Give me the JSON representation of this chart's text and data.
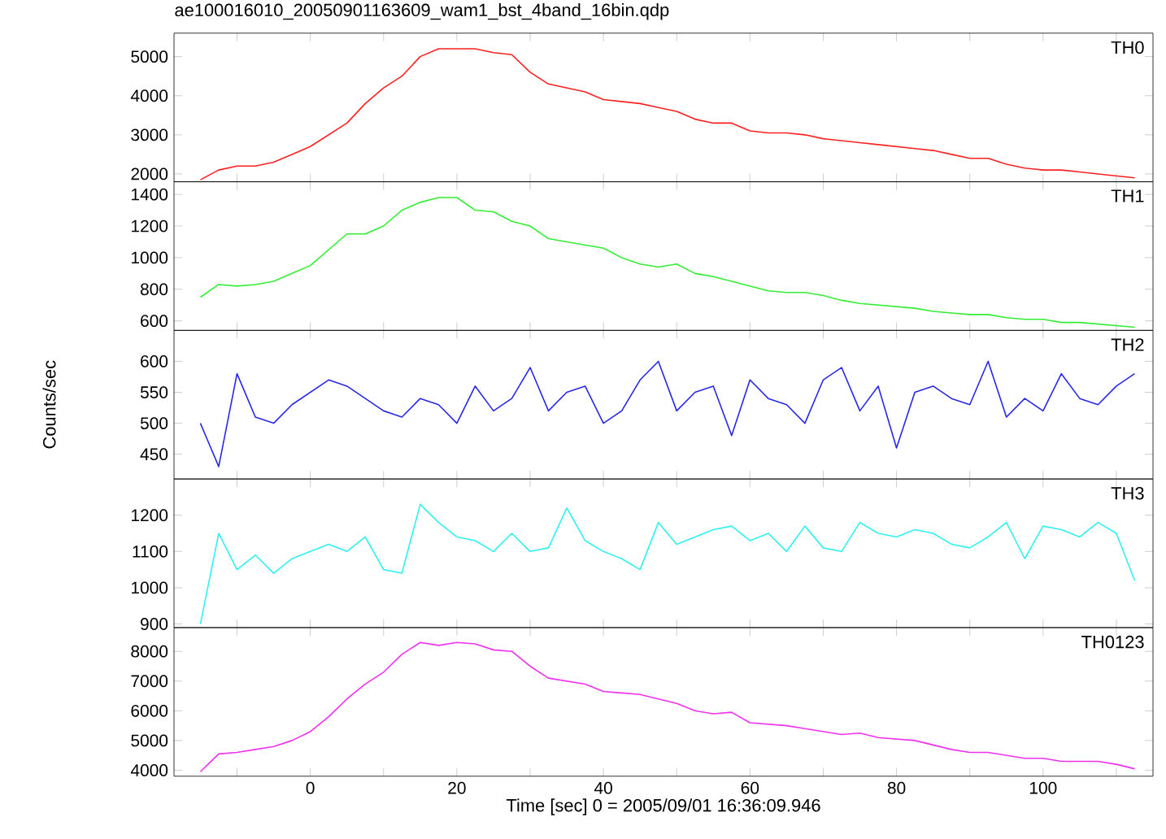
{
  "chart_data": [
    {
      "type": "line",
      "title": "ae100016010_20050901163609_wam1_bst_4band_16bin.qdp",
      "annotations": [
        "TH0"
      ],
      "tick_labels": "y",
      "x": [
        -15,
        -12.5,
        -10,
        -7.5,
        -5,
        -2.5,
        0,
        2.5,
        5,
        7.5,
        10,
        12.5,
        15,
        17.5,
        20,
        22.5,
        25,
        27.5,
        30,
        32.5,
        35,
        37.5,
        40,
        42.5,
        45,
        47.5,
        50,
        52.5,
        55,
        57.5,
        60,
        62.5,
        65,
        67.5,
        70,
        72.5,
        75,
        77.5,
        80,
        82.5,
        85,
        87.5,
        90,
        92.5,
        95,
        97.5,
        100,
        102.5,
        105,
        107.5,
        110,
        112.5
      ],
      "series": [
        {
          "color": "#ff2020",
          "values": [
            1850,
            2100,
            2200,
            2200,
            2300,
            2500,
            2700,
            3000,
            3300,
            3800,
            4200,
            4500,
            5000,
            5200,
            5200,
            5200,
            5100,
            5050,
            4600,
            4300,
            4200,
            4100,
            3900,
            3850,
            3800,
            3700,
            3600,
            3400,
            3300,
            3300,
            3100,
            3050,
            3050,
            3000,
            2900,
            2850,
            2800,
            2750,
            2700,
            2650,
            2600,
            2500,
            2400,
            2400,
            2250,
            2150,
            2100,
            2100,
            2050,
            2000,
            1950,
            1900
          ]
        }
      ],
      "xlim": [
        -18.6,
        115
      ],
      "xticks": [
        {
          "value": -10,
          "label": null
        },
        {
          "value": 0,
          "label": null
        },
        {
          "value": 10,
          "label": null
        },
        {
          "value": 20,
          "label": null
        },
        {
          "value": 30,
          "label": null
        },
        {
          "value": 40,
          "label": null
        },
        {
          "value": 50,
          "label": null
        },
        {
          "value": 60,
          "label": null
        },
        {
          "value": 70,
          "label": null
        },
        {
          "value": 80,
          "label": null
        },
        {
          "value": 90,
          "label": null
        },
        {
          "value": 100,
          "label": null
        },
        {
          "value": 110,
          "label": null
        }
      ],
      "ylim": [
        1800,
        5600
      ],
      "yticks": [
        2000,
        3000,
        4000,
        5000
      ]
    },
    {
      "type": "line",
      "annotations": [
        "TH1"
      ],
      "tick_labels": "y",
      "x": [
        -15,
        -12.5,
        -10,
        -7.5,
        -5,
        -2.5,
        0,
        2.5,
        5,
        7.5,
        10,
        12.5,
        15,
        17.5,
        20,
        22.5,
        25,
        27.5,
        30,
        32.5,
        35,
        37.5,
        40,
        42.5,
        45,
        47.5,
        50,
        52.5,
        55,
        57.5,
        60,
        62.5,
        65,
        67.5,
        70,
        72.5,
        75,
        77.5,
        80,
        82.5,
        85,
        87.5,
        90,
        92.5,
        95,
        97.5,
        100,
        102.5,
        105,
        107.5,
        110,
        112.5
      ],
      "series": [
        {
          "color": "#33ee33",
          "values": [
            750,
            830,
            820,
            830,
            850,
            900,
            950,
            1050,
            1150,
            1150,
            1200,
            1300,
            1350,
            1380,
            1380,
            1300,
            1290,
            1230,
            1200,
            1120,
            1100,
            1080,
            1060,
            1000,
            960,
            940,
            960,
            900,
            880,
            850,
            820,
            790,
            780,
            780,
            760,
            730,
            710,
            700,
            690,
            680,
            660,
            650,
            640,
            640,
            620,
            610,
            610,
            590,
            590,
            580,
            570,
            560
          ]
        }
      ],
      "xlim": [
        -18.6,
        115
      ],
      "xticks": [
        {
          "value": -10,
          "label": null
        },
        {
          "value": 0,
          "label": null
        },
        {
          "value": 10,
          "label": null
        },
        {
          "value": 20,
          "label": null
        },
        {
          "value": 30,
          "label": null
        },
        {
          "value": 40,
          "label": null
        },
        {
          "value": 50,
          "label": null
        },
        {
          "value": 60,
          "label": null
        },
        {
          "value": 70,
          "label": null
        },
        {
          "value": 80,
          "label": null
        },
        {
          "value": 90,
          "label": null
        },
        {
          "value": 100,
          "label": null
        },
        {
          "value": 110,
          "label": null
        }
      ],
      "ylim": [
        540,
        1480
      ],
      "yticks": [
        600,
        800,
        1000,
        1200,
        1400
      ]
    },
    {
      "type": "line",
      "ylabel": "Counts/sec",
      "annotations": [
        "TH2"
      ],
      "tick_labels": "y",
      "x": [
        -15,
        -12.5,
        -10,
        -7.5,
        -5,
        -2.5,
        0,
        2.5,
        5,
        7.5,
        10,
        12.5,
        15,
        17.5,
        20,
        22.5,
        25,
        27.5,
        30,
        32.5,
        35,
        37.5,
        40,
        42.5,
        45,
        47.5,
        50,
        52.5,
        55,
        57.5,
        60,
        62.5,
        65,
        67.5,
        70,
        72.5,
        75,
        77.5,
        80,
        82.5,
        85,
        87.5,
        90,
        92.5,
        95,
        97.5,
        100,
        102.5,
        105,
        107.5,
        110,
        112.5
      ],
      "series": [
        {
          "color": "#2828e8",
          "values": [
            500,
            430,
            580,
            510,
            500,
            530,
            550,
            570,
            560,
            540,
            520,
            510,
            540,
            530,
            500,
            560,
            520,
            540,
            590,
            520,
            550,
            560,
            500,
            520,
            570,
            600,
            520,
            550,
            560,
            480,
            570,
            540,
            530,
            500,
            570,
            590,
            520,
            560,
            460,
            550,
            560,
            540,
            530,
            600,
            510,
            540,
            520,
            580,
            540,
            530,
            560,
            580
          ]
        }
      ],
      "xlim": [
        -18.6,
        115
      ],
      "xticks": [
        {
          "value": -10,
          "label": null
        },
        {
          "value": 0,
          "label": null
        },
        {
          "value": 10,
          "label": null
        },
        {
          "value": 20,
          "label": null
        },
        {
          "value": 30,
          "label": null
        },
        {
          "value": 40,
          "label": null
        },
        {
          "value": 50,
          "label": null
        },
        {
          "value": 60,
          "label": null
        },
        {
          "value": 70,
          "label": null
        },
        {
          "value": 80,
          "label": null
        },
        {
          "value": 90,
          "label": null
        },
        {
          "value": 100,
          "label": null
        },
        {
          "value": 110,
          "label": null
        }
      ],
      "ylim": [
        410,
        650
      ],
      "yticks": [
        450,
        500,
        550,
        600
      ]
    },
    {
      "type": "line",
      "annotations": [
        "TH3"
      ],
      "tick_labels": "y",
      "x": [
        -15,
        -12.5,
        -10,
        -7.5,
        -5,
        -2.5,
        0,
        2.5,
        5,
        7.5,
        10,
        12.5,
        15,
        17.5,
        20,
        22.5,
        25,
        27.5,
        30,
        32.5,
        35,
        37.5,
        40,
        42.5,
        45,
        47.5,
        50,
        52.5,
        55,
        57.5,
        60,
        62.5,
        65,
        67.5,
        70,
        72.5,
        75,
        77.5,
        80,
        82.5,
        85,
        87.5,
        90,
        92.5,
        95,
        97.5,
        100,
        102.5,
        105,
        107.5,
        110,
        112.5
      ],
      "series": [
        {
          "color": "#30f0f0",
          "values": [
            900,
            1150,
            1050,
            1090,
            1040,
            1080,
            1100,
            1120,
            1100,
            1140,
            1050,
            1040,
            1230,
            1180,
            1140,
            1130,
            1100,
            1150,
            1100,
            1110,
            1220,
            1130,
            1100,
            1080,
            1050,
            1180,
            1120,
            1140,
            1160,
            1170,
            1130,
            1150,
            1100,
            1170,
            1110,
            1100,
            1180,
            1150,
            1140,
            1160,
            1150,
            1120,
            1110,
            1140,
            1180,
            1080,
            1170,
            1160,
            1140,
            1180,
            1150,
            1020
          ]
        }
      ],
      "xlim": [
        -18.6,
        115
      ],
      "xticks": [
        {
          "value": -10,
          "label": null
        },
        {
          "value": 0,
          "label": null
        },
        {
          "value": 10,
          "label": null
        },
        {
          "value": 20,
          "label": null
        },
        {
          "value": 30,
          "label": null
        },
        {
          "value": 40,
          "label": null
        },
        {
          "value": 50,
          "label": null
        },
        {
          "value": 60,
          "label": null
        },
        {
          "value": 70,
          "label": null
        },
        {
          "value": 80,
          "label": null
        },
        {
          "value": 90,
          "label": null
        },
        {
          "value": 100,
          "label": null
        },
        {
          "value": 110,
          "label": null
        }
      ],
      "ylim": [
        890,
        1300
      ],
      "yticks": [
        900,
        1000,
        1100,
        1200
      ]
    },
    {
      "type": "line",
      "xlabel": "Time [sec] 0 = 2005/09/01 16:36:09.946",
      "annotations": [
        "TH0123"
      ],
      "x": [
        -15,
        -12.5,
        -10,
        -7.5,
        -5,
        -2.5,
        0,
        2.5,
        5,
        7.5,
        10,
        12.5,
        15,
        17.5,
        20,
        22.5,
        25,
        27.5,
        30,
        32.5,
        35,
        37.5,
        40,
        42.5,
        45,
        47.5,
        50,
        52.5,
        55,
        57.5,
        60,
        62.5,
        65,
        67.5,
        70,
        72.5,
        75,
        77.5,
        80,
        82.5,
        85,
        87.5,
        90,
        92.5,
        95,
        97.5,
        100,
        102.5,
        105,
        107.5,
        110,
        112.5
      ],
      "series": [
        {
          "color": "#f030f0",
          "values": [
            3950,
            4550,
            4600,
            4700,
            4800,
            5000,
            5300,
            5800,
            6400,
            6900,
            7300,
            7900,
            8300,
            8200,
            8300,
            8250,
            8050,
            8000,
            7500,
            7100,
            7000,
            6900,
            6650,
            6600,
            6550,
            6400,
            6250,
            6000,
            5900,
            5950,
            5600,
            5550,
            5500,
            5400,
            5300,
            5200,
            5250,
            5100,
            5050,
            5000,
            4850,
            4700,
            4600,
            4600,
            4500,
            4400,
            4400,
            4300,
            4300,
            4300,
            4200,
            4050
          ]
        }
      ],
      "xlim": [
        -18.6,
        115
      ],
      "xticks": [
        {
          "value": -10,
          "label": null
        },
        {
          "value": 0,
          "label": "0"
        },
        {
          "value": 10,
          "label": null
        },
        {
          "value": 20,
          "label": "20"
        },
        {
          "value": 30,
          "label": null
        },
        {
          "value": 40,
          "label": "40"
        },
        {
          "value": 50,
          "label": null
        },
        {
          "value": 60,
          "label": "60"
        },
        {
          "value": 70,
          "label": null
        },
        {
          "value": 80,
          "label": "80"
        },
        {
          "value": 90,
          "label": null
        },
        {
          "value": 100,
          "label": "100"
        },
        {
          "value": 110,
          "label": null
        }
      ],
      "ylim": [
        3800,
        8800
      ],
      "yticks": [
        4000,
        5000,
        6000,
        7000,
        8000
      ]
    }
  ]
}
